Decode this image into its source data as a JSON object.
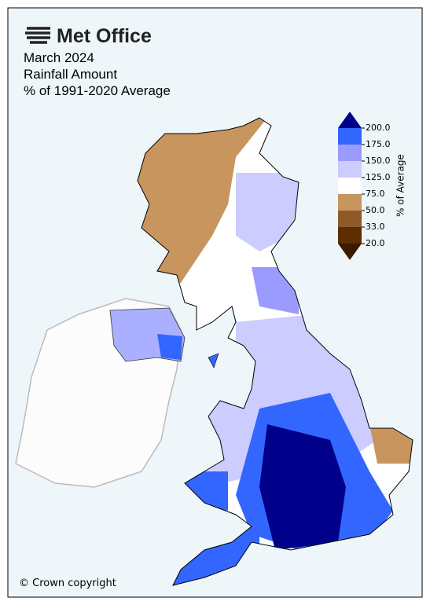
{
  "header": {
    "logo": "Met Office",
    "title_lines": [
      "March 2024",
      "Rainfall Amount",
      "% of 1991-2020 Average"
    ]
  },
  "colorbar": {
    "label": "% of Average",
    "ticks": [
      {
        "value": 20,
        "label": "20.0"
      },
      {
        "value": 33,
        "label": "33.0"
      },
      {
        "value": 50,
        "label": "50.0"
      },
      {
        "value": 75,
        "label": "75.0"
      },
      {
        "value": 125,
        "label": "125.0"
      },
      {
        "value": 150,
        "label": "150.0"
      },
      {
        "value": 175,
        "label": "175.0"
      },
      {
        "value": 200,
        "label": "200.0"
      }
    ],
    "band_colors": [
      "#5c2e00",
      "#8e5a2a",
      "#c8955f",
      "#ffffff",
      "#ccccff",
      "#9b9bff",
      "#3366ff"
    ],
    "under_color": "#3b1a00",
    "over_color": "#00008b"
  },
  "copyright": "© Crown copyright"
}
